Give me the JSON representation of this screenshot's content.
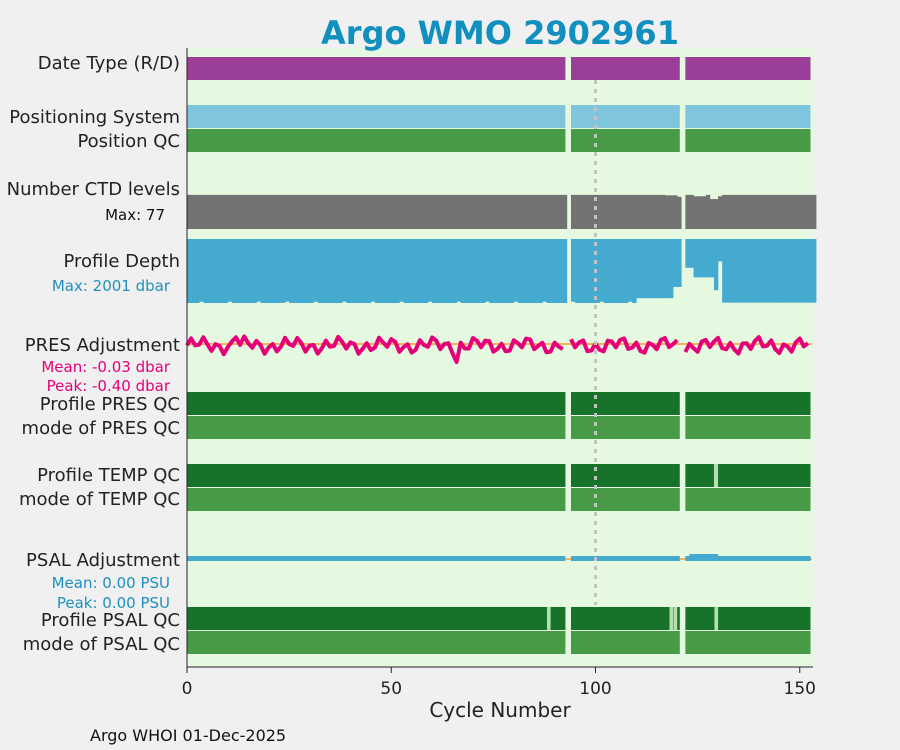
{
  "chart_data": {
    "type": "float-timeline",
    "title": "Argo WMO 2902961",
    "xlabel": "Cycle Number",
    "xlim": [
      0,
      153
    ],
    "xticks": [
      0,
      50,
      100,
      150
    ],
    "vline_cycle": 100,
    "missing_cycles": [
      93,
      121
    ],
    "rows": {
      "date_type": {
        "label": "Date Type (R/D)",
        "color": "#9a3e97"
      },
      "positioning": {
        "label": "Positioning System",
        "color": "#7fc5de"
      },
      "position_qc": {
        "label": "Position QC",
        "color": "#479a46"
      },
      "n_levels": {
        "label": "Number CTD levels",
        "max_label": "Max: 77",
        "color": "#727272",
        "max": 77
      },
      "profile_depth": {
        "label": "Profile Depth",
        "max_label": "Max: 2001 dbar",
        "color": "#45aad0",
        "max": 2001
      },
      "pres_adj": {
        "label": "PRES Adjustment",
        "mean_label": "Mean: -0.03 dbar",
        "peak_label": "Peak: -0.40 dbar",
        "color": "#e5007a",
        "zero_color": "#f5b25a"
      },
      "profile_pres_qc": {
        "label": "Profile PRES QC",
        "color": "#17732a"
      },
      "mode_pres_qc": {
        "label": "mode of PRES QC",
        "color": "#479a46"
      },
      "profile_temp_qc": {
        "label": "Profile TEMP QC",
        "color": "#17732a"
      },
      "mode_temp_qc": {
        "label": "mode of TEMP QC",
        "color": "#479a46"
      },
      "psal_adj": {
        "label": "PSAL Adjustment",
        "mean_label": "Mean: 0.00 PSU",
        "peak_label": "Peak: 0.00 PSU",
        "color": "#45aad0"
      },
      "profile_psal_qc": {
        "label": "Profile PSAL QC",
        "color": "#17732a",
        "light_color": "#b7dfb1"
      },
      "mode_psal_qc": {
        "label": "mode of PSAL QC",
        "color": "#479a46"
      }
    }
  },
  "footer": "Argo WHOI 01-Dec-2025"
}
